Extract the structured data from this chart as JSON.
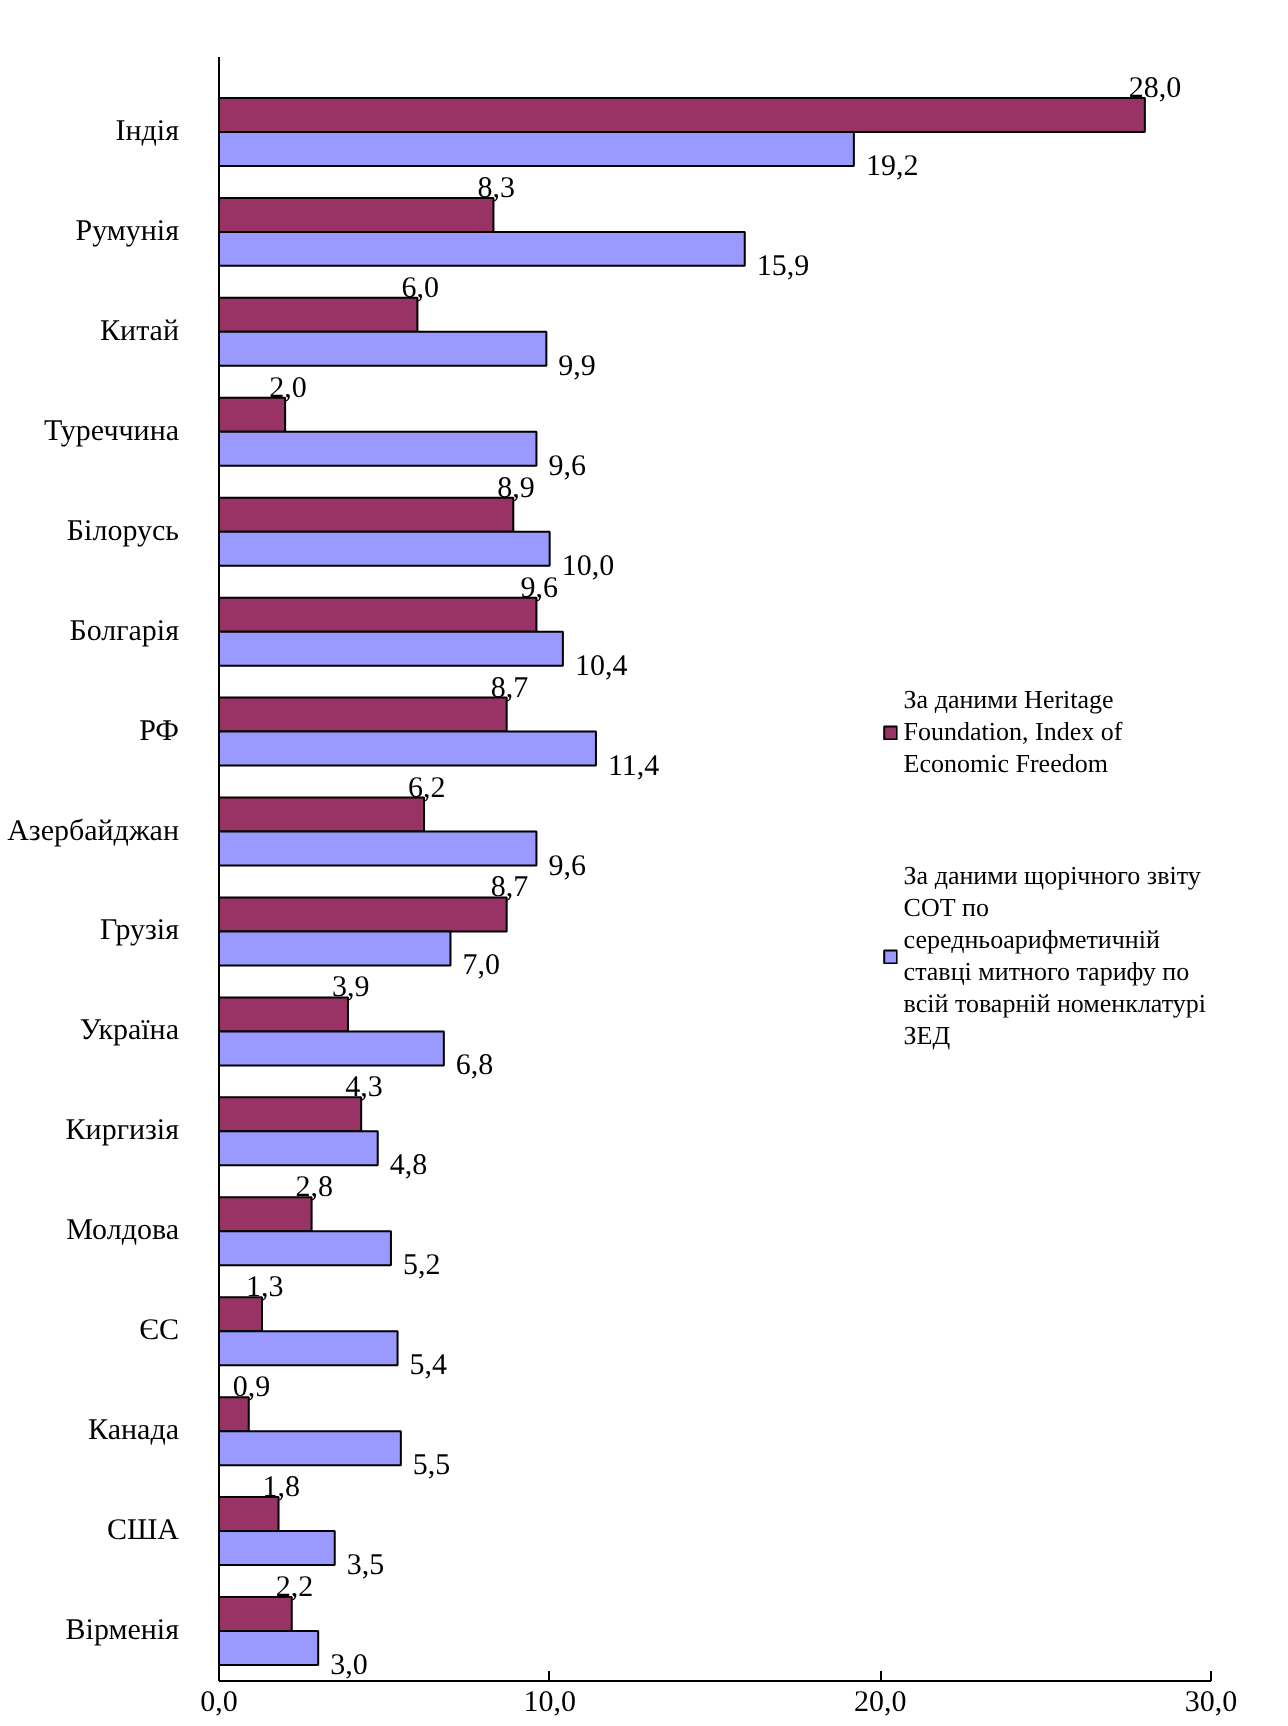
{
  "chart_data": {
    "type": "bar",
    "orientation": "horizontal",
    "categories": [
      "Індія",
      "Румунія",
      "Китай",
      "Туреччина",
      "Білорусь",
      "Болгарія",
      "РФ",
      "Азербайджан",
      "Грузія",
      "Україна",
      "Киргизія",
      "Молдова",
      "ЄС",
      "Канада",
      "США",
      "Вірменія"
    ],
    "series": [
      {
        "name": "За даними Heritage Foundation, Index of Economic Freedom",
        "color": "#993366",
        "values": [
          28.0,
          8.3,
          6.0,
          2.0,
          8.9,
          9.6,
          8.7,
          6.2,
          8.7,
          3.9,
          4.3,
          2.8,
          1.3,
          0.9,
          1.8,
          2.2
        ],
        "value_labels": [
          "28,0",
          "8,3",
          "6,0",
          "2,0",
          "8,9",
          "9,6",
          "8,7",
          "6,2",
          "8,7",
          "3,9",
          "4,3",
          "2,8",
          "1,3",
          "0,9",
          "1,8",
          "2,2"
        ]
      },
      {
        "name": "За даними щорічного звіту СОТ по середньоарифметичній ставці митного тарифу по всій товарній номенклатурі ЗЕД",
        "color": "#9999ff",
        "values": [
          19.2,
          15.9,
          9.9,
          9.6,
          10.0,
          10.4,
          11.4,
          9.6,
          7.0,
          6.8,
          4.8,
          5.2,
          5.4,
          5.5,
          3.5,
          3.0
        ],
        "value_labels": [
          "19,2",
          "15,9",
          "9,9",
          "9,6",
          "10,0",
          "10,4",
          "11,4",
          "9,6",
          "7,0",
          "6,8",
          "4,8",
          "5,2",
          "5,4",
          "5,5",
          "3,5",
          "3,0"
        ]
      }
    ],
    "xlim": [
      0,
      30
    ],
    "xticks": [
      {
        "value": 0,
        "label": "0,0"
      },
      {
        "value": 10,
        "label": "10,0"
      },
      {
        "value": 20,
        "label": "20,0"
      },
      {
        "value": 30,
        "label": "30,0"
      }
    ],
    "grid": false,
    "legend": "right"
  }
}
